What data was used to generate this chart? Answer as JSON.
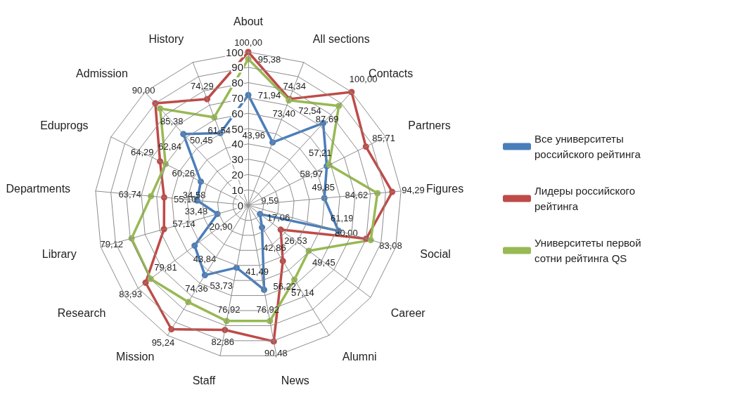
{
  "chart_data": {
    "type": "radar",
    "categories": [
      "About",
      "All sections",
      "Contacts",
      "Partners",
      "Figures",
      "Social",
      "Career",
      "Alumni",
      "News",
      "Staff",
      "Mission",
      "Research",
      "Library",
      "Departments",
      "Eduprogs",
      "Admission",
      "History"
    ],
    "ylim": [
      0,
      100
    ],
    "yticks": [
      0,
      10,
      20,
      30,
      40,
      50,
      60,
      70,
      80,
      90,
      100
    ],
    "series": [
      {
        "name": "Все университеты российского рейтинга",
        "color": "#4a7ebb",
        "values": [
          71.94,
          43.96,
          72.54,
          57.21,
          49.85,
          61.19,
          9.59,
          17.06,
          56.22,
          41.49,
          53.73,
          43.84,
          20.9,
          33.48,
          34.58,
          62.84,
          50.45
        ],
        "value_labels": [
          "71,94",
          "43,96",
          "72,54",
          "57,21",
          "49,85",
          "61,19",
          "9,59",
          "17,06",
          "56,22",
          "41,49",
          "53,73",
          "43,84",
          "20,90",
          "33,48",
          "34,58",
          "62,84",
          "50,45"
        ]
      },
      {
        "name": "Лидеры российского рейтинга",
        "color": "#be4b48",
        "values": [
          100.0,
          74.34,
          100.0,
          85.71,
          94.29,
          80.0,
          26.53,
          42.86,
          90.48,
          82.86,
          95.24,
          83.93,
          57.14,
          55.1,
          64.29,
          90.0,
          74.29
        ],
        "value_labels": [
          "100,00",
          "74,34",
          "100,00",
          "85,71",
          "94,29",
          "80,00",
          "26,53",
          "42,86",
          "90,48",
          "82,86",
          "95,24",
          "83,93",
          "57,14",
          "55,10",
          "64,29",
          "90,00",
          "74,29"
        ]
      },
      {
        "name": "Университеты первой сотни рейтинга QS",
        "color": "#98b954",
        "values": [
          95.38,
          73.4,
          87.69,
          58.97,
          84.62,
          83.08,
          49.45,
          57.14,
          76.92,
          76.92,
          74.36,
          79.81,
          79.12,
          63.74,
          60.26,
          85.38,
          61.54
        ],
        "value_labels": [
          "95,38",
          "73,40",
          "87,69",
          "58,97",
          "84,62",
          "83,08",
          "49,45",
          "57,14",
          "76,92",
          "76,92",
          "74,36",
          "79,81",
          "79,12",
          "63,74",
          "60,26",
          "85,38",
          "61,54"
        ]
      }
    ],
    "legend": "right",
    "marker": "circle",
    "grid": true
  }
}
